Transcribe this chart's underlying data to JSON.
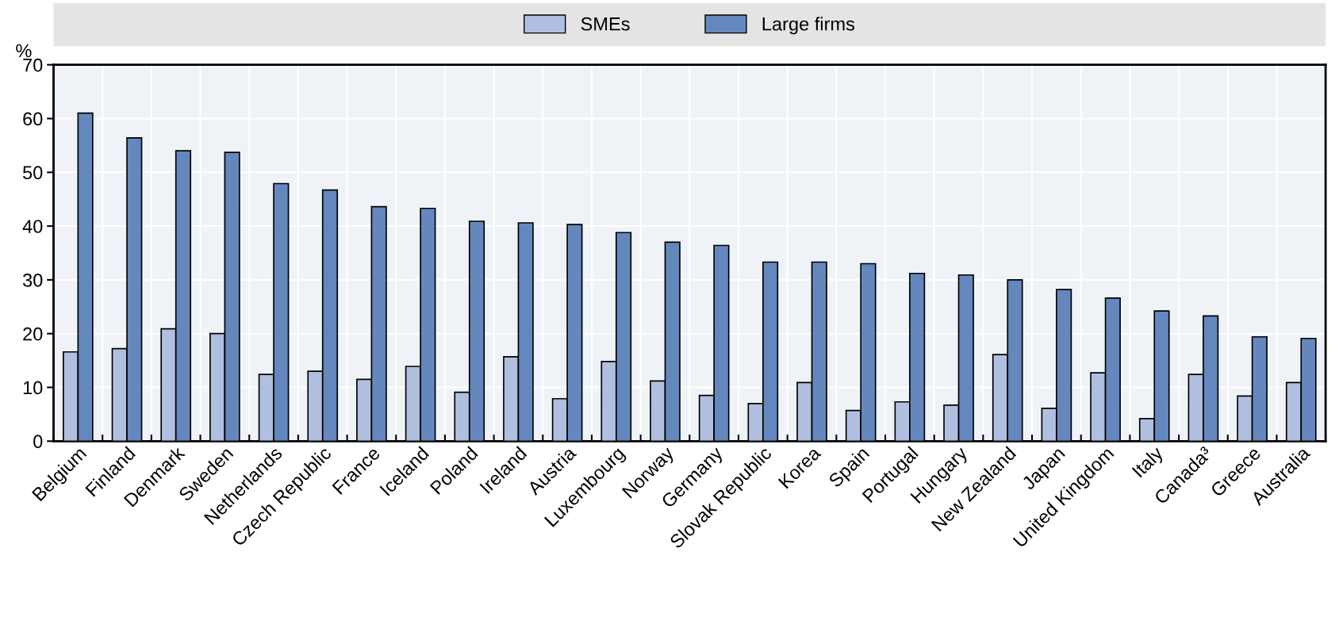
{
  "chart_data": {
    "type": "bar",
    "ylabel": "%",
    "categories": [
      "Belgium",
      "Finland",
      "Denmark",
      "Sweden",
      "Netherlands",
      "Czech Republic",
      "France",
      "Iceland",
      "Poland",
      "Ireland",
      "Austria",
      "Luxembourg",
      "Norway",
      "Germany",
      "Slovak Republic",
      "Korea",
      "Spain",
      "Portugal",
      "Hungary",
      "New Zealand",
      "Japan",
      "United Kingdom",
      "Italy",
      "Canada³",
      "Greece",
      "Australia"
    ],
    "series": [
      {
        "name": "SMEs",
        "color": "#b0bfe0",
        "values": [
          16.6,
          17.2,
          20.9,
          20.0,
          12.4,
          13.0,
          11.5,
          13.9,
          9.1,
          15.7,
          7.9,
          14.8,
          11.2,
          8.5,
          7.0,
          10.9,
          5.7,
          7.3,
          6.7,
          16.1,
          6.1,
          12.7,
          4.2,
          12.4,
          8.4,
          10.9
        ]
      },
      {
        "name": "Large firms",
        "color": "#6488be",
        "values": [
          61.0,
          56.4,
          54.0,
          53.7,
          47.9,
          46.7,
          43.6,
          43.3,
          40.9,
          40.6,
          40.3,
          38.8,
          37.0,
          36.4,
          33.3,
          33.3,
          33.0,
          31.2,
          30.9,
          30.0,
          28.2,
          26.6,
          24.2,
          23.3,
          19.4,
          19.1
        ]
      }
    ],
    "ylim": [
      0,
      70
    ],
    "yticks": [
      0,
      10,
      20,
      30,
      40,
      50,
      60,
      70
    ],
    "grid": true,
    "legend": "top"
  }
}
